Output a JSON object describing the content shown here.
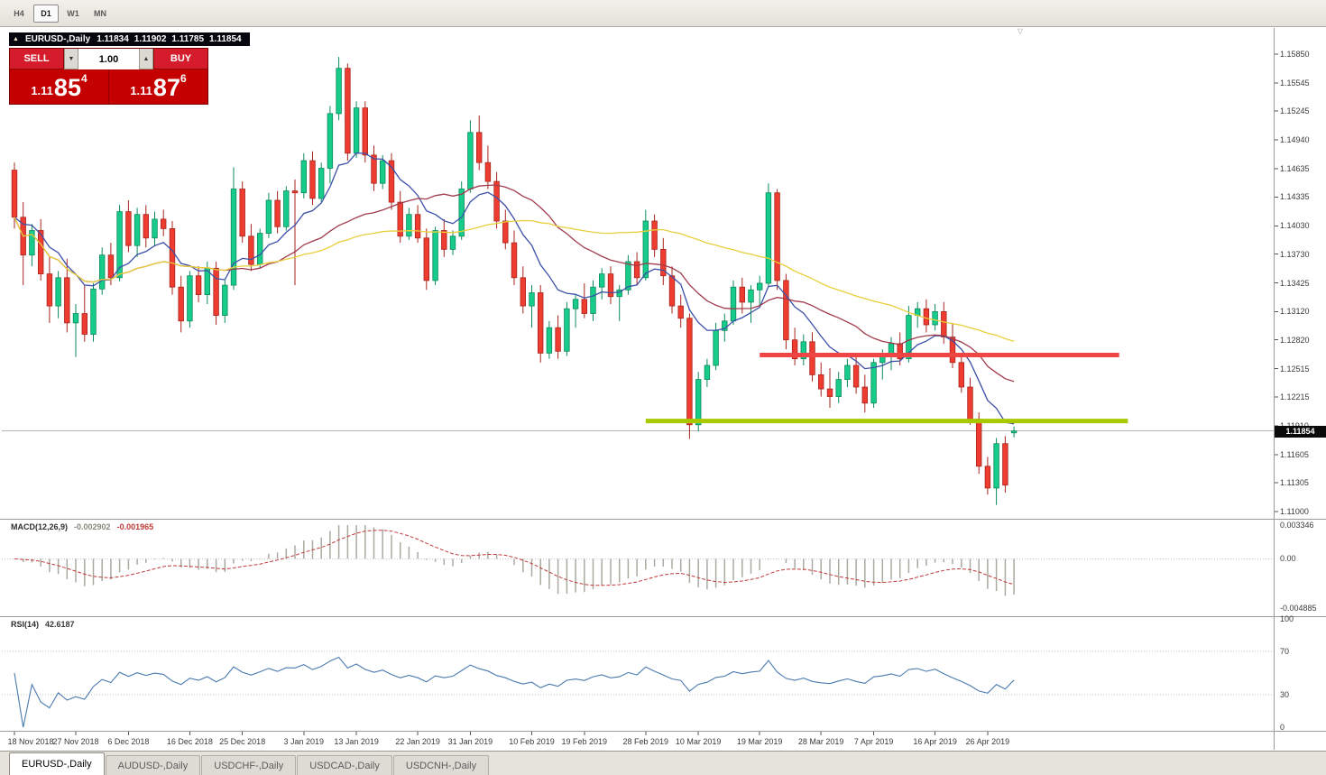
{
  "toolbar": {
    "timeframes": [
      {
        "label": "H4",
        "active": false
      },
      {
        "label": "D1",
        "active": true
      },
      {
        "label": "W1",
        "active": false
      },
      {
        "label": "MN",
        "active": false
      }
    ]
  },
  "chart": {
    "symbol_title": "EURUSD-,Daily",
    "open": "1.11834",
    "high": "1.11902",
    "low": "1.11785",
    "close": "1.11854"
  },
  "icons": {
    "chart_marker": "▲",
    "volume_down": "▼",
    "volume_up": "▲",
    "shift_marker": "▽"
  },
  "trade_panel": {
    "sell_label": "SELL",
    "buy_label": "BUY",
    "volume": "1.00",
    "sell_price": {
      "prefix": "1.11",
      "big": "85",
      "sup": "4"
    },
    "buy_price": {
      "prefix": "1.11",
      "big": "87",
      "sup": "6"
    }
  },
  "price_axis": {
    "labels": [
      "1.15850",
      "1.15545",
      "1.15245",
      "1.14940",
      "1.14635",
      "1.14335",
      "1.14030",
      "1.13730",
      "1.13425",
      "1.13120",
      "1.12820",
      "1.12515",
      "1.12215",
      "1.11910",
      "1.11605",
      "1.11305",
      "1.11000"
    ],
    "current_price": "1.11854"
  },
  "macd_panel": {
    "name": "MACD(12,26,9)",
    "macd_value": "-0.002902",
    "signal_value": "-0.001965",
    "axis": [
      "0.003346",
      "0.00",
      "-0.004885"
    ]
  },
  "rsi_panel": {
    "name": "RSI(14)",
    "value": "42.6187",
    "axis": [
      "100",
      "70",
      "30",
      "0"
    ]
  },
  "date_axis": [
    {
      "label": "18 Nov 2018",
      "index": 0
    },
    {
      "label": "27 Nov 2018",
      "index": 7
    },
    {
      "label": "6 Dec 2018",
      "index": 13
    },
    {
      "label": "16 Dec 2018",
      "index": 20
    },
    {
      "label": "25 Dec 2018",
      "index": 26
    },
    {
      "label": "3 Jan 2019",
      "index": 33
    },
    {
      "label": "13 Jan 2019",
      "index": 39
    },
    {
      "label": "22 Jan 2019",
      "index": 46
    },
    {
      "label": "31 Jan 2019",
      "index": 52
    },
    {
      "label": "10 Feb 2019",
      "index": 59
    },
    {
      "label": "19 Feb 2019",
      "index": 65
    },
    {
      "label": "28 Feb 2019",
      "index": 72
    },
    {
      "label": "10 Mar 2019",
      "index": 78
    },
    {
      "label": "19 Mar 2019",
      "index": 85
    },
    {
      "label": "28 Mar 2019",
      "index": 92
    },
    {
      "label": "7 Apr 2019",
      "index": 98
    },
    {
      "label": "16 Apr 2019",
      "index": 105
    },
    {
      "label": "26 Apr 2019",
      "index": 111
    }
  ],
  "tabs": {
    "items": [
      {
        "label": "EURUSD-,Daily",
        "active": true
      },
      {
        "label": "AUDUSD-,Daily",
        "active": false
      },
      {
        "label": "USDCHF-,Daily",
        "active": false
      },
      {
        "label": "USDCAD-,Daily",
        "active": false
      },
      {
        "label": "USDCNH-,Daily",
        "active": false
      }
    ]
  },
  "chart_data": {
    "type": "candlestick",
    "symbol": "EURUSD",
    "timeframe": "Daily",
    "price_range": [
      1.11,
      1.1585
    ],
    "candle_colors": {
      "up": "#17cc8a",
      "up_border": "#0a8a5a",
      "down": "#ee3c30",
      "down_border": "#a8241c"
    },
    "bid_line": {
      "price": 1.11854,
      "color": "#b4b4b4"
    },
    "moving_averages": [
      {
        "period": 10,
        "method": "ema",
        "color": "#3c50a8"
      },
      {
        "period": 25,
        "method": "sma",
        "color": "#a03b4c"
      },
      {
        "period": 50,
        "method": "sma",
        "color": "#e8cf3c"
      }
    ],
    "levels": [
      {
        "type": "resistance",
        "price": 1.1266,
        "color": "#f04545",
        "width": 5,
        "start_index": 85,
        "end_index": 126
      },
      {
        "type": "support",
        "price": 1.1196,
        "color": "#aac800",
        "width": 5,
        "start_index": 72,
        "end_index": 127
      }
    ],
    "macd": {
      "fast": 12,
      "slow": 26,
      "signal": 9,
      "histogram_color": "#aaaaa0",
      "signal_color": "#c03a3a",
      "axis_range": [
        -0.004885,
        0.003346
      ]
    },
    "rsi": {
      "period": 14,
      "color": "#4a7ab0",
      "levels": [
        70,
        30
      ],
      "axis_range": [
        0,
        100
      ]
    },
    "ohlc": [
      [
        1.1462,
        1.147,
        1.14,
        1.1412
      ],
      [
        1.1412,
        1.1428,
        1.134,
        1.1372
      ],
      [
        1.1372,
        1.1405,
        1.136,
        1.1398
      ],
      [
        1.1398,
        1.141,
        1.1345,
        1.1352
      ],
      [
        1.1352,
        1.137,
        1.13,
        1.1318
      ],
      [
        1.1318,
        1.1355,
        1.1305,
        1.1348
      ],
      [
        1.1348,
        1.1368,
        1.129,
        1.13
      ],
      [
        1.13,
        1.132,
        1.1264,
        1.131
      ],
      [
        1.131,
        1.134,
        1.128,
        1.1288
      ],
      [
        1.1288,
        1.1342,
        1.128,
        1.1336
      ],
      [
        1.1336,
        1.138,
        1.133,
        1.1372
      ],
      [
        1.1372,
        1.1385,
        1.134,
        1.1348
      ],
      [
        1.1348,
        1.1425,
        1.1344,
        1.1418
      ],
      [
        1.1418,
        1.143,
        1.1375,
        1.1382
      ],
      [
        1.1382,
        1.1422,
        1.137,
        1.1415
      ],
      [
        1.1415,
        1.1425,
        1.138,
        1.139
      ],
      [
        1.139,
        1.1418,
        1.1382,
        1.141
      ],
      [
        1.141,
        1.142,
        1.1392,
        1.14
      ],
      [
        1.14,
        1.1408,
        1.133,
        1.1338
      ],
      [
        1.1338,
        1.135,
        1.129,
        1.1302
      ],
      [
        1.1302,
        1.1355,
        1.1295,
        1.135
      ],
      [
        1.135,
        1.136,
        1.1322,
        1.133
      ],
      [
        1.133,
        1.1365,
        1.132,
        1.1358
      ],
      [
        1.1358,
        1.1365,
        1.1298,
        1.1308
      ],
      [
        1.1308,
        1.1345,
        1.13,
        1.134
      ],
      [
        1.134,
        1.1465,
        1.1335,
        1.1442
      ],
      [
        1.1442,
        1.145,
        1.1385,
        1.1392
      ],
      [
        1.1392,
        1.1405,
        1.1355,
        1.1362
      ],
      [
        1.1362,
        1.14,
        1.1358,
        1.1395
      ],
      [
        1.1395,
        1.1438,
        1.139,
        1.143
      ],
      [
        1.143,
        1.144,
        1.1395,
        1.1402
      ],
      [
        1.1402,
        1.1445,
        1.1398,
        1.144
      ],
      [
        1.144,
        1.1452,
        1.134,
        1.1438
      ],
      [
        1.1438,
        1.148,
        1.1432,
        1.1472
      ],
      [
        1.1472,
        1.1482,
        1.1425,
        1.1432
      ],
      [
        1.1432,
        1.147,
        1.1428,
        1.1464
      ],
      [
        1.1464,
        1.153,
        1.1448,
        1.1522
      ],
      [
        1.1522,
        1.1582,
        1.1515,
        1.157
      ],
      [
        1.157,
        1.1575,
        1.1472,
        1.148
      ],
      [
        1.148,
        1.1535,
        1.1475,
        1.1528
      ],
      [
        1.1528,
        1.1535,
        1.147,
        1.1478
      ],
      [
        1.1478,
        1.1488,
        1.144,
        1.1448
      ],
      [
        1.1448,
        1.1478,
        1.1442,
        1.1472
      ],
      [
        1.1472,
        1.148,
        1.142,
        1.1428
      ],
      [
        1.1428,
        1.144,
        1.1385,
        1.1392
      ],
      [
        1.1392,
        1.1422,
        1.1388,
        1.1415
      ],
      [
        1.1415,
        1.1425,
        1.1385,
        1.139
      ],
      [
        1.139,
        1.14,
        1.1335,
        1.1345
      ],
      [
        1.1345,
        1.1402,
        1.134,
        1.1398
      ],
      [
        1.1398,
        1.141,
        1.137,
        1.1378
      ],
      [
        1.1378,
        1.1398,
        1.1372,
        1.1392
      ],
      [
        1.1392,
        1.145,
        1.1388,
        1.1442
      ],
      [
        1.1442,
        1.1515,
        1.1438,
        1.1502
      ],
      [
        1.1502,
        1.152,
        1.1462,
        1.147
      ],
      [
        1.147,
        1.1488,
        1.1442,
        1.145
      ],
      [
        1.145,
        1.146,
        1.14,
        1.1408
      ],
      [
        1.1408,
        1.142,
        1.1378,
        1.1385
      ],
      [
        1.1385,
        1.1398,
        1.134,
        1.1348
      ],
      [
        1.1348,
        1.136,
        1.131,
        1.1318
      ],
      [
        1.1318,
        1.134,
        1.1295,
        1.1332
      ],
      [
        1.1332,
        1.134,
        1.1258,
        1.1268
      ],
      [
        1.1268,
        1.1302,
        1.1262,
        1.1295
      ],
      [
        1.1295,
        1.1308,
        1.1262,
        1.127
      ],
      [
        1.127,
        1.1322,
        1.1265,
        1.1315
      ],
      [
        1.1315,
        1.133,
        1.1295,
        1.1325
      ],
      [
        1.1325,
        1.1342,
        1.1305,
        1.131
      ],
      [
        1.131,
        1.1345,
        1.1302,
        1.1338
      ],
      [
        1.1338,
        1.1358,
        1.1325,
        1.1352
      ],
      [
        1.1352,
        1.136,
        1.132,
        1.1328
      ],
      [
        1.1328,
        1.134,
        1.1302,
        1.1335
      ],
      [
        1.1335,
        1.1372,
        1.133,
        1.1365
      ],
      [
        1.1365,
        1.1375,
        1.134,
        1.1348
      ],
      [
        1.1348,
        1.142,
        1.1345,
        1.1408
      ],
      [
        1.1408,
        1.1415,
        1.137,
        1.1378
      ],
      [
        1.1378,
        1.139,
        1.134,
        1.135
      ],
      [
        1.135,
        1.136,
        1.131,
        1.1318
      ],
      [
        1.1318,
        1.133,
        1.1295,
        1.1305
      ],
      [
        1.1305,
        1.131,
        1.1177,
        1.1192
      ],
      [
        1.1192,
        1.1248,
        1.1185,
        1.124
      ],
      [
        1.124,
        1.1262,
        1.1232,
        1.1255
      ],
      [
        1.1255,
        1.13,
        1.125,
        1.1292
      ],
      [
        1.1292,
        1.131,
        1.128,
        1.1302
      ],
      [
        1.1302,
        1.1345,
        1.1298,
        1.1338
      ],
      [
        1.1338,
        1.1348,
        1.131,
        1.1322
      ],
      [
        1.1322,
        1.134,
        1.13,
        1.1335
      ],
      [
        1.1335,
        1.135,
        1.1318,
        1.1342
      ],
      [
        1.1342,
        1.1448,
        1.1338,
        1.1438
      ],
      [
        1.1438,
        1.1442,
        1.1335,
        1.1345
      ],
      [
        1.1345,
        1.1352,
        1.1272,
        1.1282
      ],
      [
        1.1282,
        1.1295,
        1.1255,
        1.1262
      ],
      [
        1.1262,
        1.1288,
        1.1255,
        1.128
      ],
      [
        1.128,
        1.129,
        1.1238,
        1.1245
      ],
      [
        1.1245,
        1.1258,
        1.1222,
        1.123
      ],
      [
        1.123,
        1.1252,
        1.121,
        1.1222
      ],
      [
        1.1222,
        1.1248,
        1.1215,
        1.124
      ],
      [
        1.124,
        1.1262,
        1.1232,
        1.1255
      ],
      [
        1.1255,
        1.1265,
        1.1225,
        1.1232
      ],
      [
        1.1232,
        1.1245,
        1.1205,
        1.1215
      ],
      [
        1.1215,
        1.1262,
        1.121,
        1.1258
      ],
      [
        1.1258,
        1.1272,
        1.124,
        1.1265
      ],
      [
        1.1265,
        1.1285,
        1.125,
        1.1278
      ],
      [
        1.1278,
        1.129,
        1.1255,
        1.1262
      ],
      [
        1.1262,
        1.1318,
        1.1258,
        1.1308
      ],
      [
        1.1308,
        1.1322,
        1.1295,
        1.1315
      ],
      [
        1.1315,
        1.1325,
        1.129,
        1.1298
      ],
      [
        1.1298,
        1.132,
        1.1292,
        1.1312
      ],
      [
        1.1312,
        1.1322,
        1.1278,
        1.1285
      ],
      [
        1.1285,
        1.13,
        1.1252,
        1.1258
      ],
      [
        1.1258,
        1.1268,
        1.1226,
        1.1232
      ],
      [
        1.1232,
        1.1242,
        1.1192,
        1.1198
      ],
      [
        1.1198,
        1.1205,
        1.114,
        1.1148
      ],
      [
        1.1148,
        1.1158,
        1.1118,
        1.1125
      ],
      [
        1.1125,
        1.1178,
        1.1107,
        1.1172
      ],
      [
        1.1172,
        1.118,
        1.112,
        1.1128
      ],
      [
        1.11834,
        1.11902,
        1.11785,
        1.11854
      ]
    ]
  }
}
